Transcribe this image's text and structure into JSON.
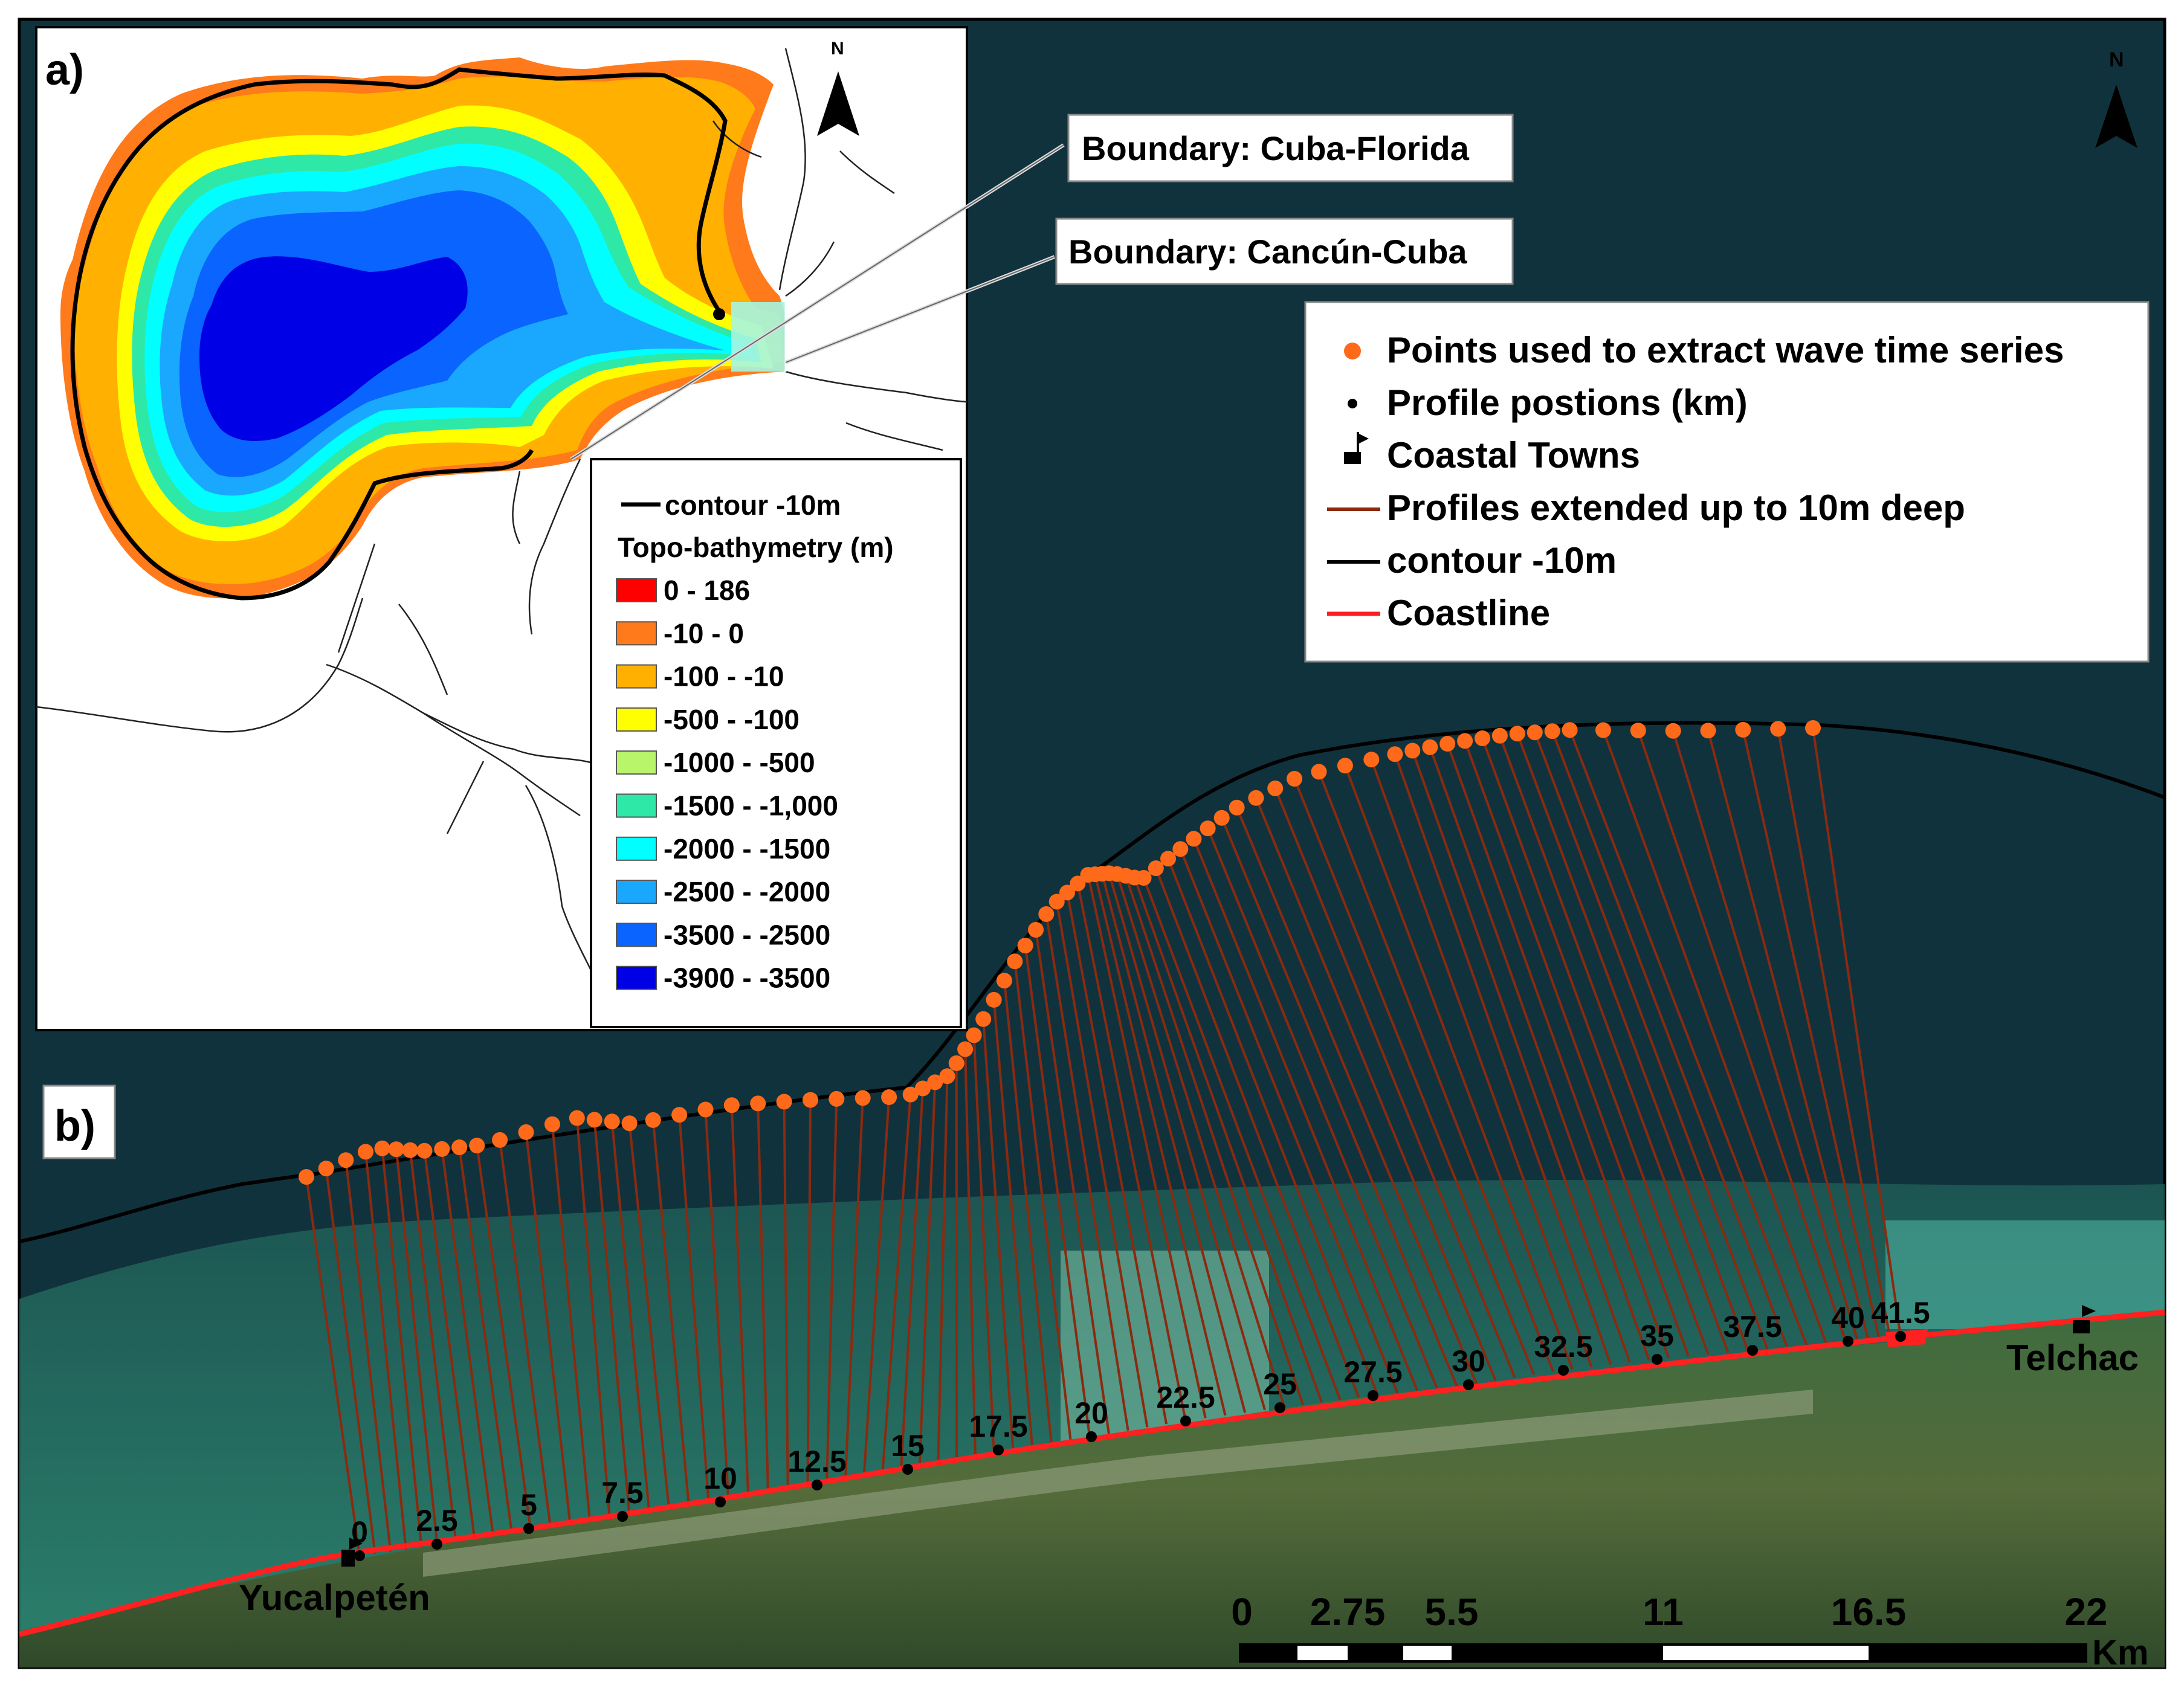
{
  "panels": {
    "a": {
      "label": "a)"
    },
    "b": {
      "label": "b)"
    }
  },
  "inset_legend": {
    "contour_label": "contour -10m",
    "title": "Topo-bathymetry (m)",
    "classes": [
      {
        "label": "0 - 186",
        "color": "#ff0000"
      },
      {
        "label": "-10 - 0",
        "color": "#ff7a1a"
      },
      {
        "label": "-100 - -10",
        "color": "#ffb000"
      },
      {
        "label": "-500 - -100",
        "color": "#ffff00"
      },
      {
        "label": "-1000 - -500",
        "color": "#b9f56a"
      },
      {
        "label": "-1500 - -1,000",
        "color": "#2ee8a8"
      },
      {
        "label": "-2000 - -1500",
        "color": "#00ffff"
      },
      {
        "label": "-2500 - -2000",
        "color": "#1aa8ff"
      },
      {
        "label": "-3500 - -2500",
        "color": "#0a64ff"
      },
      {
        "label": "-3900 - -3500",
        "color": "#0000e6"
      }
    ]
  },
  "callouts": {
    "cuba_florida": "Boundary: Cuba-Florida",
    "cancun_cuba": "Boundary: Cancún-Cuba"
  },
  "main_legend": {
    "items": [
      {
        "symbol": "orange-dot",
        "label": "Points used to extract wave time series"
      },
      {
        "symbol": "black-dot",
        "label": "Profile postions (km)"
      },
      {
        "symbol": "town-flag",
        "label": "Coastal Towns"
      },
      {
        "symbol": "brown-line",
        "label": "Profiles extended up to 10m deep"
      },
      {
        "symbol": "black-line",
        "label": "contour -10m"
      },
      {
        "symbol": "red-line",
        "label": "Coastline"
      }
    ]
  },
  "north_arrow_letter": "N",
  "towns": {
    "west": "Yucalpetén",
    "east": "Telchac"
  },
  "profile_km_labels": [
    "0",
    "2.5",
    "5",
    "7.5",
    "10",
    "12.5",
    "15",
    "17.5",
    "20",
    "22.5",
    "25",
    "27.5",
    "30",
    "32.5",
    "35",
    "37.5",
    "40",
    "41.5"
  ],
  "scale_bar": {
    "ticks": [
      "0",
      "2.75",
      "5.5",
      "11",
      "16.5",
      "22"
    ],
    "unit": "Km"
  },
  "colors": {
    "sea": "#10323d",
    "coastline": "#ff2020",
    "profile_line": "#8a2a10",
    "extract_point": "#ff6a1a",
    "contour": "#000000"
  }
}
